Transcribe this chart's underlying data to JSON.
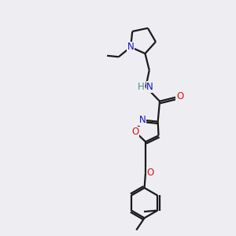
{
  "bg_color": "#eeeef2",
  "bond_color": "#1a1a1a",
  "N_color": "#1111cc",
  "O_color": "#dd1111",
  "H_color": "#558888",
  "line_width": 1.6,
  "font_size": 8.5,
  "figsize": [
    3.0,
    3.0
  ],
  "dpi": 100,
  "xlim": [
    0,
    10
  ],
  "ylim": [
    0,
    10
  ]
}
